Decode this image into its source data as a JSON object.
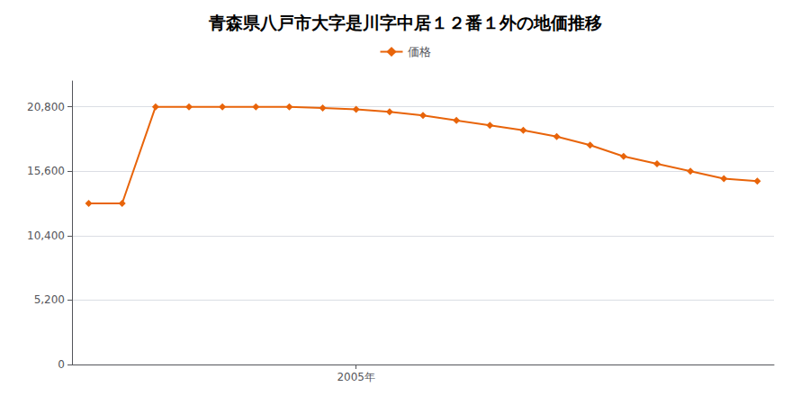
{
  "chart_data": {
    "type": "line",
    "title": "青森県八戸市大字是川字中居１２番１外の地価推移",
    "x": [
      1997,
      1998,
      1999,
      2000,
      2001,
      2002,
      2003,
      2004,
      2005,
      2006,
      2007,
      2008,
      2009,
      2010,
      2011,
      2012,
      2013,
      2014,
      2015,
      2016,
      2017
    ],
    "series": [
      {
        "name": "価格",
        "color": "#e8640a",
        "marker": "diamond",
        "values": [
          13000,
          13000,
          20800,
          20800,
          20800,
          20800,
          20800,
          20700,
          20600,
          20400,
          20100,
          19700,
          19300,
          18900,
          18400,
          17700,
          16800,
          16200,
          15600,
          15000,
          14800
        ]
      }
    ],
    "xlim": [
      1996.5,
      2017.5
    ],
    "xticks": [
      {
        "value": 2005,
        "label": "2005年"
      }
    ],
    "ylim": [
      0,
      22880
    ],
    "yticks": [
      0,
      {
        "value": 5200,
        "label": "5,200"
      },
      {
        "value": 10400,
        "label": "10,400"
      },
      {
        "value": 15600,
        "label": "15,600"
      },
      {
        "value": 20800,
        "label": "20,800"
      }
    ],
    "grid": "y",
    "legend": "top"
  }
}
